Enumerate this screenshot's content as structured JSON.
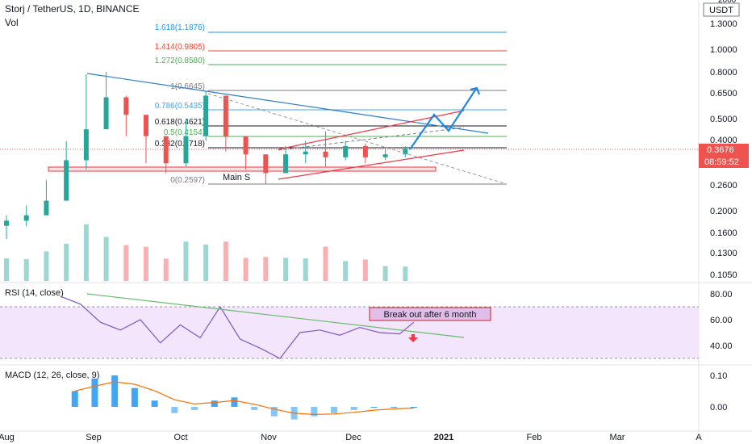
{
  "header": {
    "title": "Storj / TetherUS, 1D, BINANCE",
    "vol_label": "Vol",
    "logscale": "LOG"
  },
  "price_scale": {
    "currency": "USDT",
    "top_partial": "2000",
    "ticks": [
      "1.3000",
      "1.0000",
      "0.8000",
      "0.6500",
      "0.5000",
      "0.4000",
      "0.2600",
      "0.2000",
      "0.1600",
      "0.1300",
      "0.1050"
    ],
    "last_price": "0.3676",
    "countdown": "08:59:52"
  },
  "time_axis": [
    "Aug",
    "Sep",
    "Oct",
    "Nov",
    "Dec",
    "2021",
    "Feb",
    "Mar",
    "A"
  ],
  "fib_levels": [
    {
      "label": "1.618(1.1876)",
      "color": "#2196f3"
    },
    {
      "label": "1.414(0.9805)",
      "color": "#f44336"
    },
    {
      "label": "1.272(0.8580)",
      "color": "#4caf50"
    },
    {
      "label": "1(0.6645)",
      "color": "#787b86"
    },
    {
      "label": "0.786(0.5435)",
      "color": "#42a5f5"
    },
    {
      "label": "0.618(0.4621)",
      "color": "#131722"
    },
    {
      "label": "0.5(0.4154)",
      "color": "#4caf50"
    },
    {
      "label": "0.382(0.3718)",
      "color": "#131722"
    },
    {
      "label": "0(0.2597)",
      "color": "#787b86"
    }
  ],
  "annotations": {
    "support_label": "Main S",
    "breakout_note": "Break out after 6 month"
  },
  "rsi": {
    "label": "RSI (14, close)",
    "ticks": [
      "80.00",
      "60.00",
      "40.00"
    ],
    "band_upper": 70,
    "band_lower": 30
  },
  "macd": {
    "label": "MACD (12, 26, close, 9)",
    "ticks": [
      "0.10",
      "0.00"
    ]
  },
  "colors": {
    "up": "#26a69a",
    "down": "#ef5350",
    "trend_blue": "#2a7ec9",
    "channel_red": "#f23645",
    "projection": "#1e88e5",
    "rsi_line": "#7e57c2",
    "rsi_band": "#f3e5fb",
    "macd_signal": "#ff6d00",
    "macd_hist": "#2196f3"
  },
  "chart_data": [
    {
      "type": "candlestick",
      "title": "Storj / TetherUS, 1D, BINANCE",
      "x_range": [
        "2020-08-01",
        "2021-04-01"
      ],
      "yscale": "log",
      "ylim": [
        0.095,
        1.45
      ],
      "x": [
        "2020-08-01",
        "2020-08-08",
        "2020-08-15",
        "2020-08-22",
        "2020-08-29",
        "2020-09-05",
        "2020-09-12",
        "2020-09-19",
        "2020-09-26",
        "2020-10-03",
        "2020-10-10",
        "2020-10-17",
        "2020-10-24",
        "2020-10-31",
        "2020-11-07",
        "2020-11-14",
        "2020-11-21",
        "2020-11-28",
        "2020-12-05",
        "2020-12-12",
        "2020-12-19"
      ],
      "close": [
        0.18,
        0.19,
        0.22,
        0.33,
        0.45,
        0.62,
        0.52,
        0.42,
        0.32,
        0.42,
        0.63,
        0.42,
        0.35,
        0.29,
        0.35,
        0.36,
        0.34,
        0.38,
        0.34,
        0.35,
        0.37
      ],
      "high": [
        0.19,
        0.21,
        0.27,
        0.4,
        0.78,
        0.8,
        0.63,
        0.48,
        0.36,
        0.5,
        0.66,
        0.55,
        0.38,
        0.33,
        0.38,
        0.4,
        0.44,
        0.4,
        0.39,
        0.37,
        0.38
      ],
      "low": [
        0.15,
        0.17,
        0.2,
        0.26,
        0.3,
        0.48,
        0.42,
        0.32,
        0.29,
        0.31,
        0.4,
        0.36,
        0.3,
        0.26,
        0.3,
        0.32,
        0.31,
        0.33,
        0.32,
        0.33,
        0.34
      ]
    },
    {
      "type": "line",
      "title": "RSI (14, close)",
      "x": [
        "2020-08-20",
        "2020-08-27",
        "2020-09-03",
        "2020-09-10",
        "2020-09-17",
        "2020-09-24",
        "2020-10-01",
        "2020-10-08",
        "2020-10-15",
        "2020-10-22",
        "2020-10-29",
        "2020-11-05",
        "2020-11-12",
        "2020-11-19",
        "2020-11-26",
        "2020-12-03",
        "2020-12-10",
        "2020-12-17",
        "2020-12-22"
      ],
      "values": [
        78,
        72,
        58,
        52,
        60,
        42,
        56,
        46,
        70,
        45,
        38,
        30,
        50,
        52,
        48,
        54,
        50,
        49,
        58
      ],
      "ylim": [
        20,
        90
      ]
    },
    {
      "type": "bar",
      "title": "MACD (12, 26, close, 9)",
      "x": [
        "2020-08-25",
        "2020-09-01",
        "2020-09-08",
        "2020-09-15",
        "2020-09-22",
        "2020-09-29",
        "2020-10-06",
        "2020-10-13",
        "2020-10-20",
        "2020-10-27",
        "2020-11-03",
        "2020-11-10",
        "2020-11-17",
        "2020-11-24",
        "2020-12-01",
        "2020-12-08",
        "2020-12-15",
        "2020-12-22"
      ],
      "values": [
        0.05,
        0.09,
        0.1,
        0.06,
        0.02,
        -0.02,
        -0.01,
        0.02,
        0.03,
        -0.01,
        -0.03,
        -0.04,
        -0.03,
        -0.02,
        -0.01,
        0.0,
        0.0,
        0.0
      ],
      "ylim": [
        -0.06,
        0.13
      ]
    }
  ]
}
